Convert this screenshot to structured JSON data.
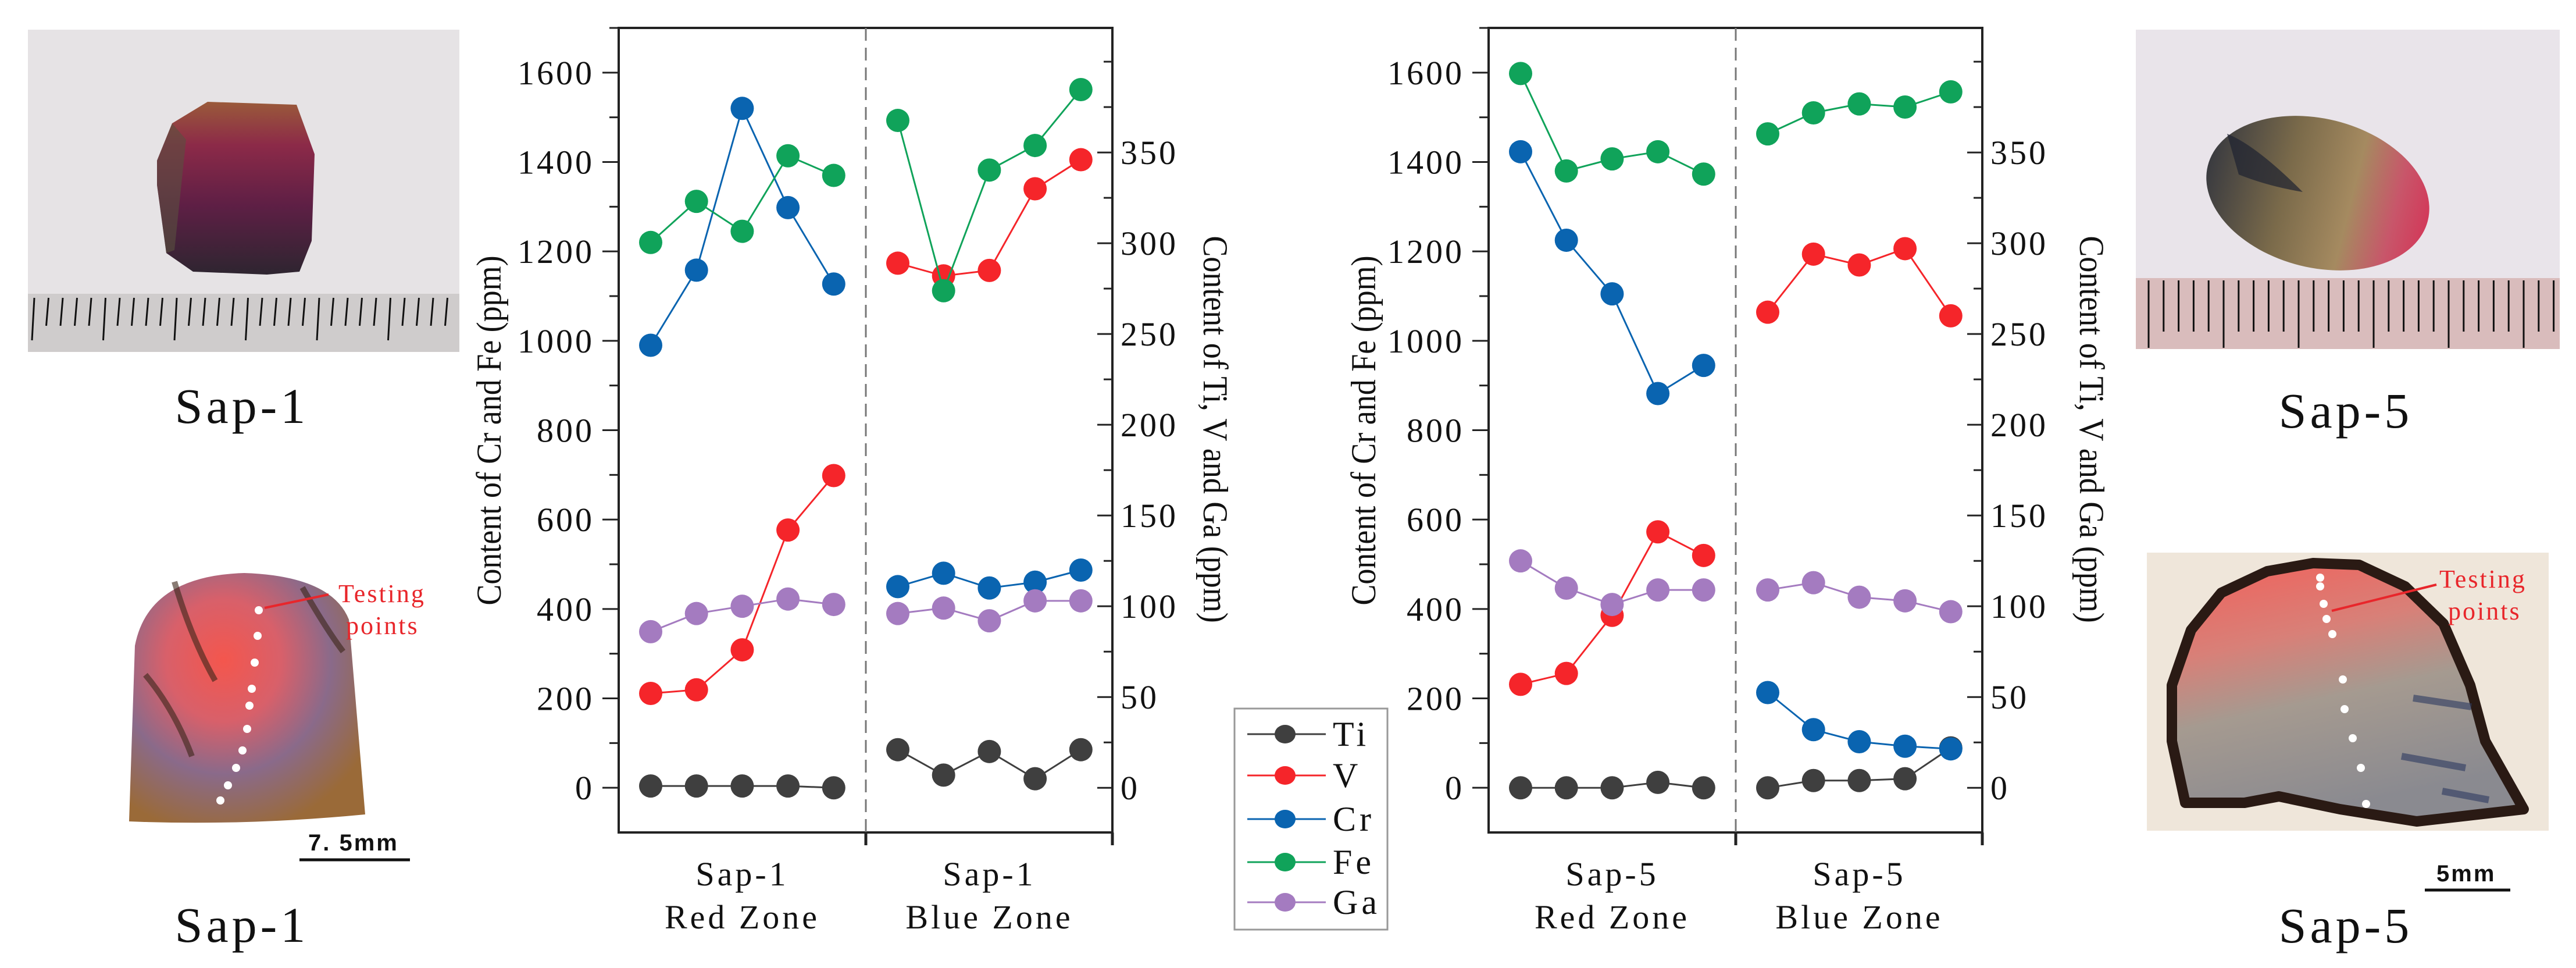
{
  "photos": {
    "sap1_crystal": {
      "label": "Sap-1"
    },
    "sap1_slice": {
      "label": "Sap-1",
      "annotation": [
        "Testing",
        "points"
      ],
      "scale_bar": "7. 5mm"
    },
    "sap5_crystal": {
      "label": "Sap-5"
    },
    "sap5_slice": {
      "label": "Sap-5",
      "annotation": [
        "Testing",
        "points"
      ],
      "scale_bar": "5mm"
    }
  },
  "legend": {
    "placement": "between charts, bottom"
  },
  "chart_data": [
    {
      "type": "line",
      "title": "",
      "ylabel_left": "Content of Cr and Fe (ppm)",
      "ylabel_right": "Content of Ti, V and Ga (ppm)",
      "ylim_left": [
        -100,
        1700
      ],
      "ylim_right": [
        -24.6,
        418.6
      ],
      "yticks_left": [
        "0",
        "200",
        "400",
        "600",
        "800",
        "1000",
        "1200",
        "1400",
        "1600"
      ],
      "yticks_right": [
        "0",
        "50",
        "100",
        "150",
        "200",
        "250",
        "300",
        "350"
      ],
      "grid": false,
      "categories": [
        {
          "line1": "Sap-1",
          "line2": "Red Zone"
        },
        {
          "line1": "Sap-1",
          "line2": "Blue Zone"
        }
      ],
      "series": [
        {
          "name": "Ti",
          "axis": "right",
          "color": "#3f3f3f",
          "values": [
            [
              1,
              1,
              1,
              1,
              0
            ],
            [
              21,
              7,
              20,
              5,
              21
            ]
          ]
        },
        {
          "name": "V",
          "axis": "right",
          "color": "#f5252a",
          "values": [
            [
              52,
              54,
              76,
              142,
              172
            ],
            [
              289,
              282,
              285,
              330,
              346
            ]
          ]
        },
        {
          "name": "Cr",
          "axis": "left",
          "color": "#0a64b0",
          "values": [
            [
              990,
              1158,
              1520,
              1298,
              1127
            ],
            [
              450,
              480,
              447,
              460,
              487
            ]
          ]
        },
        {
          "name": "Fe",
          "axis": "left",
          "color": "#10a35a",
          "values": [
            [
              1220,
              1312,
              1245,
              1414,
              1370
            ],
            [
              1493,
              1112,
              1382,
              1437,
              1562
            ]
          ]
        },
        {
          "name": "Ga",
          "axis": "right",
          "color": "#a47bc0",
          "values": [
            [
              86,
              96,
              100,
              104,
              101
            ],
            [
              96,
              99,
              92,
              103,
              103
            ]
          ]
        }
      ]
    },
    {
      "type": "line",
      "title": "",
      "ylabel_left": "Content of Cr and Fe (ppm)",
      "ylabel_right": "Content of Ti, V and Ga (ppm)",
      "ylim_left": [
        -100,
        1700
      ],
      "ylim_right": [
        -24.6,
        418.6
      ],
      "yticks_left": [
        "0",
        "200",
        "400",
        "600",
        "800",
        "1000",
        "1200",
        "1400",
        "1600"
      ],
      "yticks_right": [
        "0",
        "50",
        "100",
        "150",
        "200",
        "250",
        "300",
        "350"
      ],
      "grid": false,
      "categories": [
        {
          "line1": "Sap-5",
          "line2": "Red Zone"
        },
        {
          "line1": "Sap-5",
          "line2": "Blue Zone"
        }
      ],
      "series": [
        {
          "name": "Ti",
          "axis": "right",
          "color": "#3f3f3f",
          "values": [
            [
              0,
              0,
              0,
              3,
              0
            ],
            [
              0,
              4,
              4,
              5,
              22
            ]
          ]
        },
        {
          "name": "V",
          "axis": "right",
          "color": "#f5252a",
          "values": [
            [
              57,
              63,
              95,
              141,
              128
            ],
            [
              262,
              294,
              288,
              297,
              260
            ]
          ]
        },
        {
          "name": "Cr",
          "axis": "left",
          "color": "#0a64b0",
          "values": [
            [
              1423,
              1225,
              1105,
              882,
              945
            ],
            [
              213,
              130,
              103,
              93,
              87
            ]
          ]
        },
        {
          "name": "Fe",
          "axis": "left",
          "color": "#10a35a",
          "values": [
            [
              1598,
              1380,
              1407,
              1423,
              1373
            ],
            [
              1463,
              1510,
              1530,
              1523,
              1557
            ]
          ]
        },
        {
          "name": "Ga",
          "axis": "right",
          "color": "#a47bc0",
          "values": [
            [
              125,
              110,
              101,
              109,
              109
            ],
            [
              109,
              113,
              105,
              103,
              97
            ]
          ]
        }
      ]
    }
  ]
}
